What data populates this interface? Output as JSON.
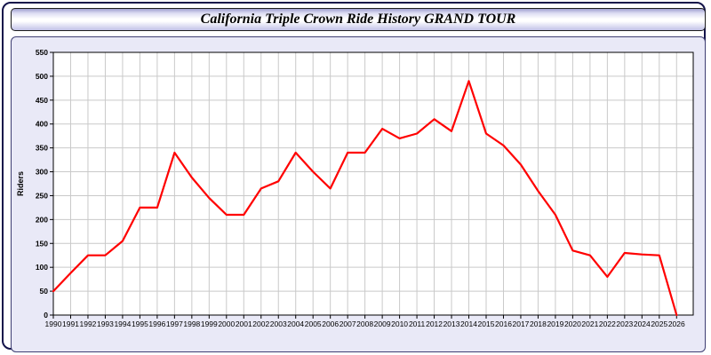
{
  "title": "California Triple Crown Ride History GRAND TOUR",
  "colors": {
    "line": "#ff0000",
    "plot_background": "#ffffff",
    "panel_background": "#e9e9f7",
    "gridline": "#c9c9c9",
    "axis_frame": "#000000",
    "label_text": "#000000"
  },
  "chart_data": {
    "type": "line",
    "title": "California Triple Crown Ride History GRAND TOUR",
    "xlabel": "",
    "ylabel": "Riders",
    "x": [
      1990,
      1991,
      1992,
      1993,
      1994,
      1995,
      1996,
      1997,
      1998,
      1999,
      2000,
      2001,
      2002,
      2003,
      2004,
      2005,
      2006,
      2007,
      2008,
      2009,
      2010,
      2011,
      2012,
      2013,
      2014,
      2015,
      2016,
      2017,
      2018,
      2019,
      2020,
      2021,
      2022,
      2023,
      2024,
      2025,
      2026
    ],
    "values": [
      50,
      88,
      125,
      125,
      155,
      225,
      225,
      340,
      288,
      245,
      210,
      210,
      265,
      280,
      340,
      300,
      265,
      340,
      340,
      390,
      370,
      380,
      410,
      385,
      490,
      380,
      355,
      315,
      260,
      210,
      135,
      125,
      80,
      130,
      127,
      125,
      0
    ],
    "ylim": [
      0,
      550
    ],
    "ytick_step": 50,
    "grid": true,
    "legend": "none",
    "line_color": "#ff0000"
  }
}
